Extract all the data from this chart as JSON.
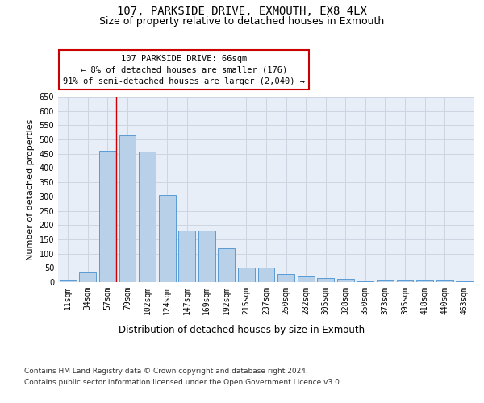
{
  "title": "107, PARKSIDE DRIVE, EXMOUTH, EX8 4LX",
  "subtitle": "Size of property relative to detached houses in Exmouth",
  "xlabel": "Distribution of detached houses by size in Exmouth",
  "ylabel": "Number of detached properties",
  "categories": [
    "11sqm",
    "34sqm",
    "57sqm",
    "79sqm",
    "102sqm",
    "124sqm",
    "147sqm",
    "169sqm",
    "192sqm",
    "215sqm",
    "237sqm",
    "260sqm",
    "282sqm",
    "305sqm",
    "328sqm",
    "350sqm",
    "373sqm",
    "395sqm",
    "418sqm",
    "440sqm",
    "463sqm"
  ],
  "values": [
    7,
    35,
    460,
    515,
    458,
    305,
    180,
    180,
    120,
    50,
    50,
    27,
    20,
    13,
    10,
    2,
    5,
    7,
    7,
    5,
    4
  ],
  "bar_color": "#b8d0e8",
  "bar_edge_color": "#5a9bd5",
  "annotation_box": {
    "text_lines": [
      "107 PARKSIDE DRIVE: 66sqm",
      "← 8% of detached houses are smaller (176)",
      "91% of semi-detached houses are larger (2,040) →"
    ],
    "box_color": "#ffffff",
    "box_edge_color": "#cc0000",
    "fontsize": 7.5
  },
  "footer_lines": [
    "Contains HM Land Registry data © Crown copyright and database right 2024.",
    "Contains public sector information licensed under the Open Government Licence v3.0."
  ],
  "red_line_bar_idx": 2,
  "ylim": [
    0,
    650
  ],
  "yticks": [
    0,
    50,
    100,
    150,
    200,
    250,
    300,
    350,
    400,
    450,
    500,
    550,
    600,
    650
  ],
  "grid_color": "#cdd5e3",
  "background_color": "#e8eef7",
  "fig_background": "#ffffff",
  "title_fontsize": 10,
  "subtitle_fontsize": 9,
  "xlabel_fontsize": 8.5,
  "ylabel_fontsize": 8,
  "tick_fontsize": 7,
  "footer_fontsize": 6.5
}
